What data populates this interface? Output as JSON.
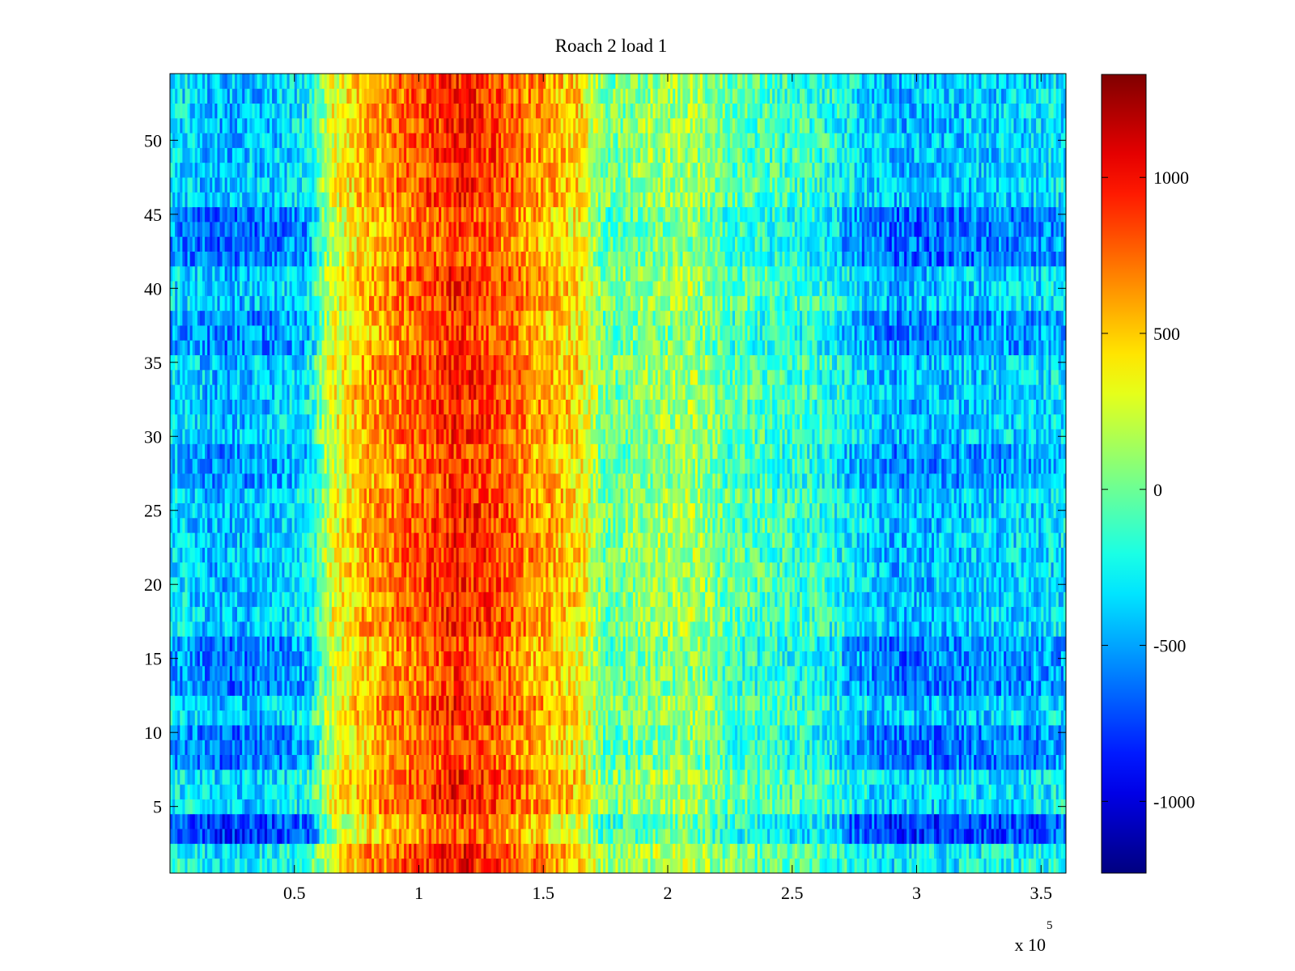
{
  "chart_data": {
    "type": "heatmap",
    "title": "Roach 2 load 1",
    "xlabel": "",
    "ylabel": "",
    "x_exponent_label": "x 10",
    "x_exponent_power": "5",
    "xlim": [
      0,
      360000
    ],
    "ylim": [
      0.5,
      54.5
    ],
    "xticks": [
      50000,
      100000,
      150000,
      200000,
      250000,
      300000,
      350000
    ],
    "xtick_labels": [
      "0.5",
      "1",
      "1.5",
      "2",
      "2.5",
      "3",
      "3.5"
    ],
    "yticks": [
      5,
      10,
      15,
      20,
      25,
      30,
      35,
      40,
      45,
      50
    ],
    "ytick_labels": [
      "5",
      "10",
      "15",
      "20",
      "25",
      "30",
      "35",
      "40",
      "45",
      "50"
    ],
    "rows": 54,
    "colormap": "jet",
    "clim": [
      -1230,
      1330
    ],
    "colorbar_ticks": [
      -1000,
      -500,
      0,
      500,
      1000
    ],
    "colorbar_tick_labels": [
      "-1000",
      "-500",
      "0",
      "500",
      "1000"
    ],
    "band_profile": {
      "x": [
        0,
        20000,
        40000,
        55000,
        65000,
        80000,
        100000,
        115000,
        130000,
        150000,
        165000,
        175000,
        190000,
        210000,
        225000,
        240000,
        260000,
        275000,
        290000,
        310000,
        330000,
        350000,
        360000
      ],
      "value": [
        -300,
        -450,
        -400,
        -300,
        300,
        600,
        800,
        950,
        850,
        600,
        450,
        0,
        100,
        150,
        -50,
        -100,
        -150,
        -300,
        -450,
        -420,
        -380,
        -350,
        -300
      ]
    },
    "row_offsets": [
      {
        "rows": [
          1,
          2
        ],
        "offset": 120
      },
      {
        "rows": [
          3,
          4
        ],
        "offset": -350
      },
      {
        "rows": [
          5,
          6,
          7
        ],
        "offset": 50
      },
      {
        "rows": [
          8,
          9,
          10
        ],
        "offset": -200
      },
      {
        "rows": [
          13,
          14,
          15,
          16
        ],
        "offset": -180
      },
      {
        "rows": [
          27,
          28,
          29
        ],
        "offset": -120
      },
      {
        "rows": [
          36,
          37,
          38
        ],
        "offset": -150
      },
      {
        "rows": [
          42,
          43,
          44,
          45
        ],
        "offset": -220
      }
    ],
    "grid": false,
    "colorbar_position": "right"
  }
}
